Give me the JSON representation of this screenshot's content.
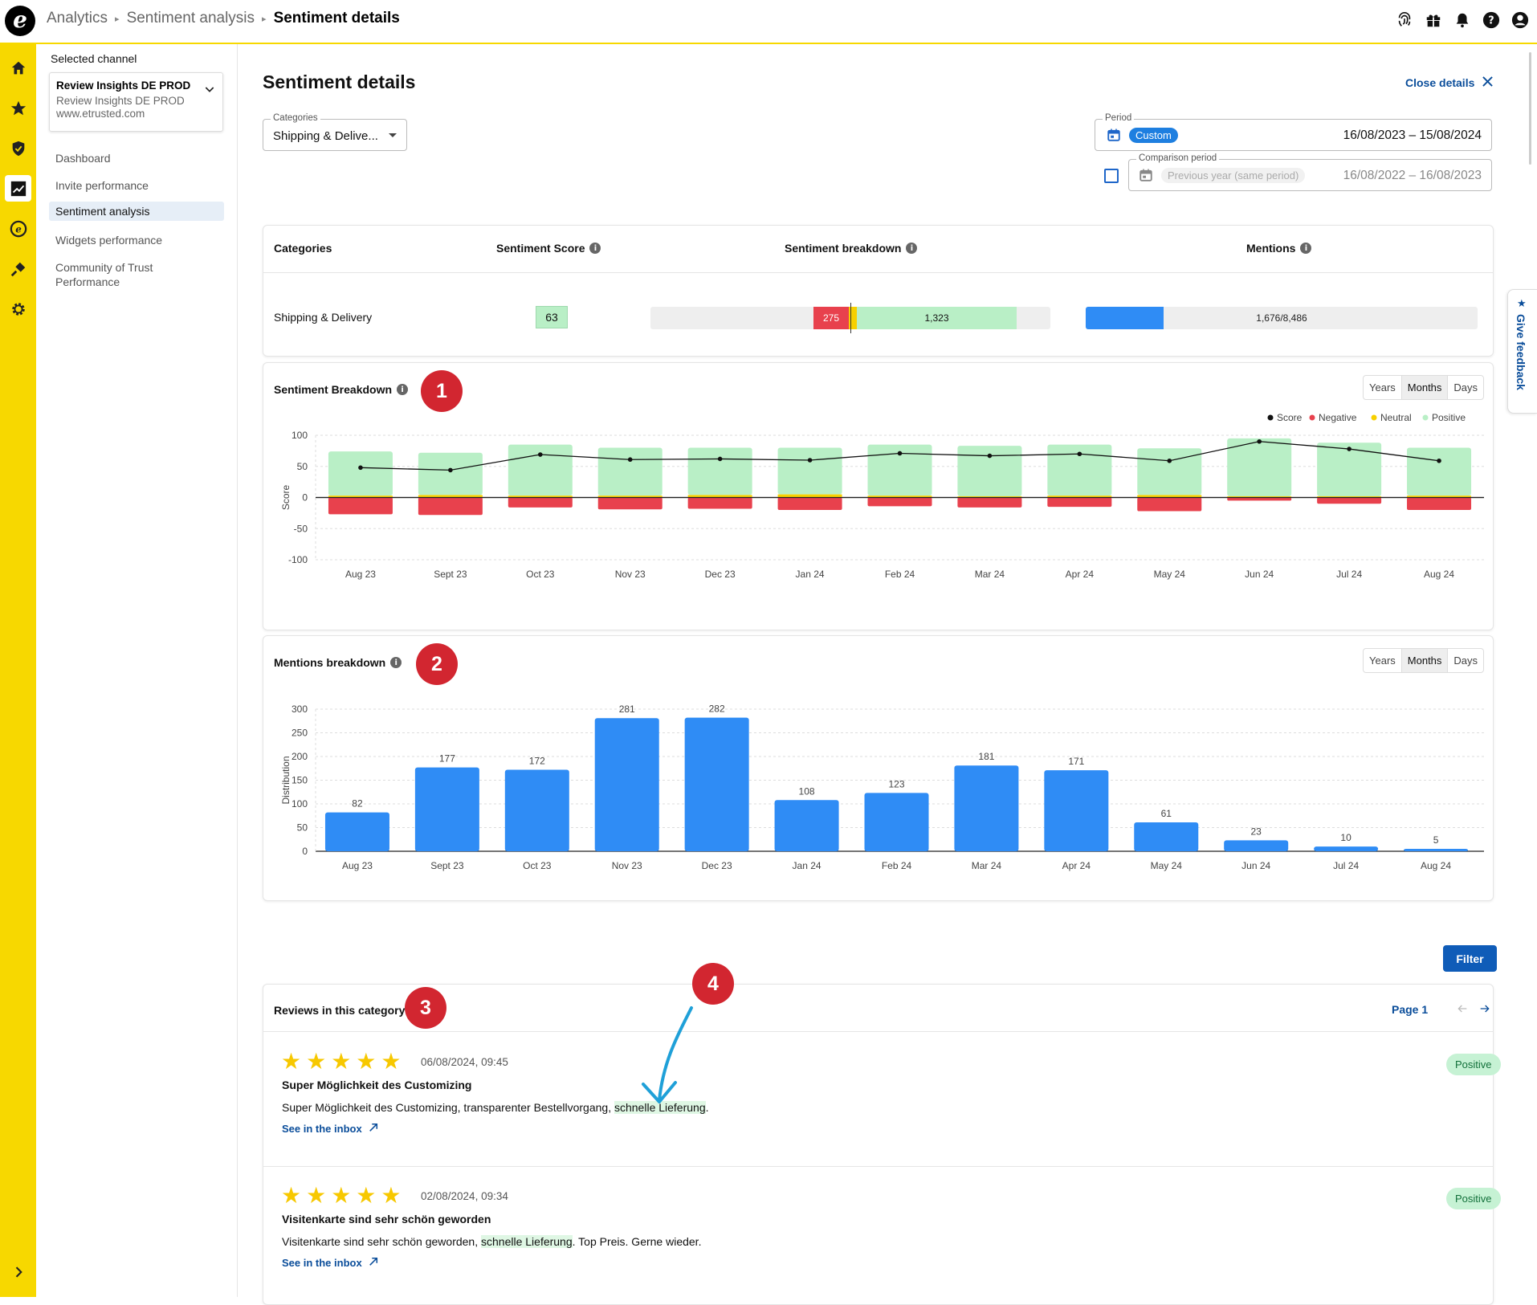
{
  "breadcrumb": {
    "items": [
      "Analytics",
      "Sentiment analysis"
    ],
    "current": "Sentiment details"
  },
  "sidebar": {
    "selected_label": "Selected channel",
    "channel": {
      "name": "Review Insights DE PROD",
      "subname": "Review Insights DE PROD",
      "url": "www.etrusted.com"
    },
    "items": [
      {
        "label": "Dashboard"
      },
      {
        "label": "Invite performance"
      },
      {
        "label": "Sentiment analysis"
      },
      {
        "label": "Widgets performance"
      },
      {
        "label": "Community of Trust"
      },
      {
        "label": "Performance"
      }
    ]
  },
  "page": {
    "title": "Sentiment details",
    "close_label": "Close details"
  },
  "filters": {
    "categories_label": "Categories",
    "categories_value": "Shipping & Delive...",
    "period_label": "Period",
    "period_chip": "Custom",
    "period_dates": "16/08/2023 – 15/08/2024",
    "comparison_label": "Comparison period",
    "comparison_chip": "Previous year (same period)",
    "comparison_dates": "16/08/2022 – 16/08/2023"
  },
  "summary": {
    "headers": {
      "categories": "Categories",
      "score": "Sentiment Score",
      "breakdown": "Sentiment breakdown",
      "mentions": "Mentions"
    },
    "row": {
      "category": "Shipping & Delivery",
      "score": "63",
      "negative": "275",
      "positive": "1,323",
      "mentions": "1,676/8,486"
    }
  },
  "sentiment_chart": {
    "title": "Sentiment Breakdown",
    "badge": "1",
    "toggle": [
      "Years",
      "Months",
      "Days"
    ],
    "active_toggle": "Months",
    "ylabel": "Score",
    "legend": [
      "Score",
      "Negative",
      "Neutral",
      "Positive"
    ]
  },
  "mentions_chart": {
    "title": "Mentions breakdown",
    "badge": "2",
    "toggle": [
      "Years",
      "Months",
      "Days"
    ],
    "active_toggle": "Months",
    "ylabel": "Distribution"
  },
  "chart_data": [
    {
      "type": "bar",
      "ylabel": "Score",
      "ylim": [
        -100,
        100
      ],
      "yticks": [
        100,
        50,
        0,
        -50,
        -100
      ],
      "categories": [
        "Aug 23",
        "Sept 23",
        "Oct 23",
        "Nov 23",
        "Dec 23",
        "Jan 24",
        "Feb 24",
        "Mar 24",
        "Apr 24",
        "May 24",
        "Jun 24",
        "Jul 24",
        "Aug 24"
      ],
      "series": [
        {
          "name": "Positive",
          "values": [
            74,
            72,
            85,
            80,
            80,
            80,
            85,
            83,
            85,
            79,
            95,
            88,
            80
          ]
        },
        {
          "name": "Neutral",
          "values": [
            3,
            4,
            3,
            3,
            4,
            5,
            3,
            2,
            3,
            4,
            2,
            2,
            3
          ]
        },
        {
          "name": "Negative",
          "values": [
            -27,
            -28,
            -16,
            -19,
            -18,
            -20,
            -14,
            -16,
            -15,
            -22,
            -5,
            -10,
            -20
          ]
        },
        {
          "name": "Score",
          "values": [
            48,
            44,
            69,
            61,
            62,
            60,
            71,
            67,
            70,
            59,
            90,
            78,
            59
          ]
        }
      ],
      "legend_position": "top-right",
      "grid": true
    },
    {
      "type": "bar",
      "ylabel": "Distribution",
      "ylim": [
        0,
        300
      ],
      "yticks": [
        300,
        250,
        200,
        150,
        100,
        50,
        0
      ],
      "categories": [
        "Aug 23",
        "Sept 23",
        "Oct 23",
        "Nov 23",
        "Dec 23",
        "Jan 24",
        "Feb 24",
        "Mar 24",
        "Apr 24",
        "May 24",
        "Jun 24",
        "Jul 24",
        "Aug 24"
      ],
      "values": [
        82,
        177,
        172,
        281,
        282,
        108,
        123,
        181,
        171,
        61,
        23,
        10,
        5
      ],
      "grid": true
    }
  ],
  "filter_button": "Filter",
  "reviews": {
    "title": "Reviews in this category",
    "badge": "3",
    "arrow_badge": "4",
    "page_label": "Page 1",
    "items": [
      {
        "date": "06/08/2024, 09:45",
        "title": "Super Möglichkeit des Customizing",
        "text_before": "Super Möglichkeit des Customizing, transparenter Bestellvorgang, ",
        "highlight": "schnelle Lieferung",
        "text_after": ".",
        "link": "See in the inbox",
        "sentiment": "Positive"
      },
      {
        "date": "02/08/2024, 09:34",
        "title": "Visitenkarte sind sehr schön geworden",
        "text_before": "Visitenkarte sind sehr schön geworden, ",
        "highlight": "schnelle Lieferung",
        "text_after": ". Top Preis. Gerne wieder.",
        "link": "See in the inbox",
        "sentiment": "Positive"
      }
    ]
  },
  "feedback_tab": "Give feedback",
  "colors": {
    "brand_yellow": "#f7d800",
    "positive": "#b9efc6",
    "neutral": "#f7d000",
    "negative": "#e8414d",
    "bar_blue": "#2f8cf5",
    "link_blue": "#0a4d9a",
    "badge_red": "#d22630"
  },
  "icons": [
    "fingerprint-icon",
    "gift-icon",
    "bell-icon",
    "help-icon",
    "account-icon",
    "home-icon",
    "star-icon",
    "shield-icon",
    "chart-icon",
    "etrusted-icon",
    "plug-icon",
    "gear-icon"
  ]
}
